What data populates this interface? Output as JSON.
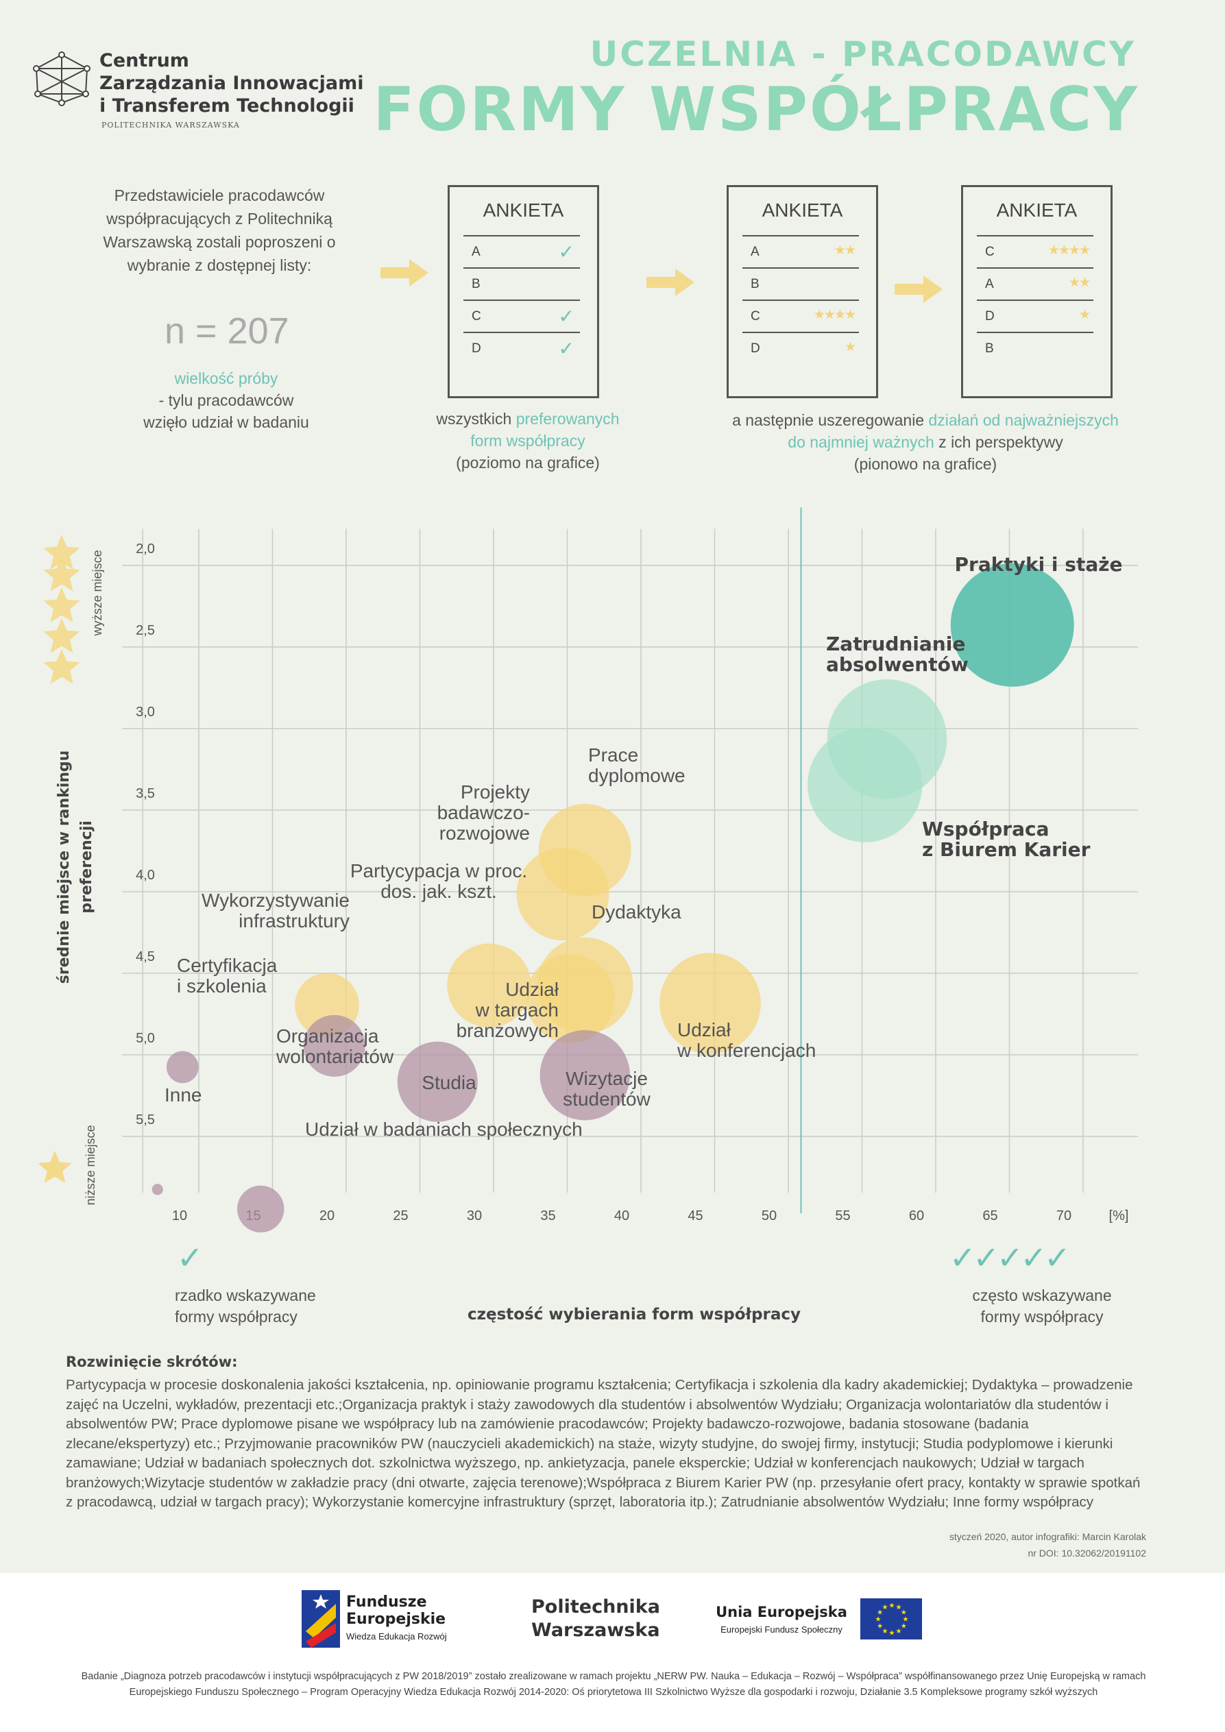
{
  "header": {
    "logo_lines": [
      "Centrum",
      "Zarządzania Innowacjami",
      "i Transferem Technologii"
    ],
    "logo_sub": "POLITECHNIKA WARSZAWSKA",
    "title_small": "UCZELNIA - PRACODAWCY",
    "title_big": "FORMY WSPÓŁPRACY"
  },
  "intro": {
    "text": "Przedstawiciele pracodawców współpracujących z Politechniką Warszawską zostali poproszeni o wybranie z dostępnej listy:",
    "n": "n = 207",
    "sample_label": "wielkość próby",
    "sample_text1": "- tylu pracodawców",
    "sample_text2": "wzięło udział w badaniu"
  },
  "survey": {
    "card_title": "ANKIETA",
    "card1": [
      {
        "label": "A",
        "mark": "✓"
      },
      {
        "label": "B",
        "mark": ""
      },
      {
        "label": "C",
        "mark": "✓"
      },
      {
        "label": "D",
        "mark": "✓"
      }
    ],
    "card2": [
      {
        "label": "A",
        "stars": "★★"
      },
      {
        "label": "B",
        "stars": ""
      },
      {
        "label": "C",
        "stars": "★★★★"
      },
      {
        "label": "D",
        "stars": "★"
      }
    ],
    "card3": [
      {
        "label": "C",
        "stars": "★★★★"
      },
      {
        "label": "A",
        "stars": "★★"
      },
      {
        "label": "D",
        "stars": "★"
      },
      {
        "label": "B",
        "stars": ""
      }
    ],
    "caption1_a": "wszystkich ",
    "caption1_b": "preferowanych",
    "caption1_c": "form współpracy",
    "caption1_d": "(poziomo na grafice)",
    "caption2_a": "a następnie uszeregowanie ",
    "caption2_b": "działań od najważniejszych",
    "caption2_c": "do najmniej ważnych",
    "caption2_d": " z ich perspektywy",
    "caption2_e": "(pionowo na grafice)"
  },
  "chart_data": {
    "type": "scatter",
    "subtype": "bubble",
    "xlabel": "częstość wybierania form współpracy",
    "x_unit": "[%]",
    "ylabel": "średnie miejsce w rankingu preferencji",
    "y_top_label": "wyższe miejsce",
    "y_bottom_label": "niższe miejsce",
    "xlim": [
      8,
      72
    ],
    "ylim": [
      5.8,
      1.85
    ],
    "y_reversed": true,
    "xticks": [
      "10",
      "15",
      "20",
      "25",
      "30",
      "35",
      "40",
      "45",
      "50",
      "55",
      "60",
      "65",
      "70"
    ],
    "yticks": [
      "2,0",
      "2,5",
      "3,0",
      "3,5",
      "4,0",
      "4,5",
      "5,0",
      "5,5"
    ],
    "threshold_x": 51,
    "grid": true,
    "colors": {
      "purple": "#b08fa2",
      "yellow": "#f5d67a",
      "lightgreen": "#a6e0c8",
      "green": "#5bbfad"
    },
    "points": [
      {
        "label": "Praktyki i staże",
        "x": 66.5,
        "y": 2.47,
        "size": 1.0,
        "color": "green",
        "bold": true
      },
      {
        "label": "Zatrudnianie absolwentów",
        "x": 58,
        "y": 3.17,
        "size": 0.97,
        "color": "lightgreen",
        "bold": true
      },
      {
        "label": "Współpraca z Biurem Karier",
        "x": 56.5,
        "y": 3.45,
        "size": 0.93,
        "color": "lightgreen",
        "bold": true
      },
      {
        "label": "Prace dyplomowe",
        "x": 37.5,
        "y": 3.85,
        "size": 0.75,
        "color": "yellow",
        "bold": false
      },
      {
        "label": "Projekty badawczo-rozwojowe",
        "x": 36,
        "y": 4.12,
        "size": 0.75,
        "color": "yellow",
        "bold": false
      },
      {
        "label": "Partycypacja w proc. dos. jak. kszt.",
        "x": 31,
        "y": 4.68,
        "size": 0.68,
        "color": "yellow",
        "bold": false
      },
      {
        "label": "Dydaktyka",
        "x": 37.5,
        "y": 4.68,
        "size": 0.78,
        "color": "yellow",
        "bold": false
      },
      {
        "label": "Udział w targach branżowych",
        "x": 36.5,
        "y": 4.76,
        "size": 0.72,
        "color": "yellow",
        "bold": false
      },
      {
        "label": "Udział w konferencjach",
        "x": 46,
        "y": 4.79,
        "size": 0.82,
        "color": "yellow",
        "bold": false
      },
      {
        "label": "Wykorzystywanie infrastruktury",
        "x": 20,
        "y": 4.8,
        "size": 0.52,
        "color": "yellow",
        "bold": false
      },
      {
        "label": "Wizytacje studentów",
        "x": 37.5,
        "y": 5.23,
        "size": 0.73,
        "color": "purple",
        "bold": false
      },
      {
        "label": "Organizacja wolontariatów",
        "x": 20.5,
        "y": 5.05,
        "size": 0.5,
        "color": "purple",
        "bold": false
      },
      {
        "label": "Studia",
        "x": 27.5,
        "y": 5.27,
        "size": 0.65,
        "color": "purple",
        "bold": false
      },
      {
        "label": "Certyfikacja i szkolenia",
        "x": 10.2,
        "y": 5.18,
        "size": 0.26,
        "color": "purple",
        "bold": false
      },
      {
        "label": "Inne",
        "x": 8.5,
        "y": 5.93,
        "size": 0.09,
        "color": "purple",
        "bold": false
      },
      {
        "label": "Udział w badaniach społecznych",
        "x": 15.5,
        "y": 6.05,
        "size": 0.38,
        "color": "purple",
        "bold": false
      }
    ],
    "annotation_lines": {
      "Praktyki i staże": [
        "Praktyki i staże"
      ],
      "Zatrudnianie absolwentów": [
        "Zatrudnianie",
        "absolwentów"
      ],
      "Współpraca z Biurem Karier": [
        "Współpraca",
        "z Biurem Karier"
      ],
      "Prace dyplomowe": [
        "Prace",
        "dyplomowe"
      ],
      "Projekty badawczo-rozwojowe": [
        "Projekty",
        "badawczo-",
        "rozwojowe"
      ],
      "Partycypacja w proc. dos. jak. kszt.": [
        "Partycypacja w proc.",
        "dos. jak. kszt."
      ],
      "Dydaktyka": [
        "Dydaktyka"
      ],
      "Udział w targach branżowych": [
        "Udział",
        "w targach",
        "branżowych"
      ],
      "Udział w konferencjach": [
        "Udział",
        "w konferencjach"
      ],
      "Wykorzystywanie infrastruktury": [
        "Wykorzystywanie",
        "infrastruktury"
      ],
      "Wizytacje studentów": [
        "Wizytacje",
        "studentów"
      ],
      "Organizacja wolontariatów": [
        "Organizacja",
        "wolontariatów"
      ],
      "Studia": [
        "Studia"
      ],
      "Certyfikacja i szkolenia": [
        "Certyfikacja",
        "i szkolenia"
      ],
      "Inne": [
        "Inne"
      ],
      "Udział w badaniach społecznych": [
        "Udział w badaniach społecznych"
      ]
    }
  },
  "legend": {
    "low_line1": "rzadko wskazywane",
    "low_line2": "formy współpracy",
    "high_line1": "często wskazywane",
    "high_line2": "formy współpracy",
    "low_checks": "✓",
    "high_checks": "✓✓✓✓✓",
    "x_title": "częstość wybierania form współpracy"
  },
  "notes": {
    "heading": "Rozwinięcie skrótów:",
    "text": "Partycypacja w procesie doskonalenia jakości kształcenia, np. opiniowanie programu kształcenia; Certyfikacja i szkolenia dla kadry akademickiej; Dydaktyka – prowadzenie zajęć na Uczelni, wykładów, prezentacji etc.;Organizacja praktyk i staży zawodowych dla studentów i absolwentów Wydziału; Organizacja wolontariatów dla studentów i absolwentów PW; Prace dyplomowe pisane we współpracy lub na zamówienie pracodawców; Projekty badawczo-rozwojowe, badania stosowane (badania zlecane/ekspertyzy) etc.; Przyjmowanie pracowników PW (nauczycieli akademickich) na staże, wizyty studyjne, do swojej firmy, instytucji; Studia podyplomowe i kierunki zamawiane; Udział w badaniach społecznych dot. szkolnictwa wyższego, np. ankietyzacja, panele eksperckie; Udział w konferencjach naukowych; Udział w targach branżowych;Wizytacje studentów w zakładzie pracy (dni otwarte, zajęcia terenowe);Współpraca z Biurem Karier PW (np. przesyłanie ofert pracy, kontakty w sprawie spotkań z pracodawcą, udział w targach pracy); Wykorzystanie komercyjne infrastruktury (sprzęt, laboratoria itp.); Zatrudnianie absolwentów Wydziału; Inne formy współpracy",
    "credit1": "styczeń 2020, autor infografiki: Marcin Karolak",
    "credit2": "nr DOI: 10.32062/20191102"
  },
  "footer": {
    "fund_line1": "Fundusze",
    "fund_line2": "Europejskie",
    "fund_sub": "Wiedza Edukacja Rozwój",
    "pw_line1": "Politechnika",
    "pw_line2": "Warszawska",
    "ue_line1": "Unia Europejska",
    "ue_sub": "Europejski Fundusz Społeczny",
    "note": "Badanie „Diagnoza potrzeb pracodawców i instytucji współpracujących z PW 2018/2019” zostało zrealizowane w ramach projektu „NERW PW. Nauka – Edukacja – Rozwój – Współpraca” współfinansowanego przez Unię Europejską w ramach Europejskiego Funduszu Społecznego – Program Operacyjny Wiedza Edukacja Rozwój 2014-2020: Oś priorytetowa III Szkolnictwo Wyższe dla gospodarki i rozwoju, Działanie 3.5 Kompleksowe programy szkół wyższych"
  }
}
